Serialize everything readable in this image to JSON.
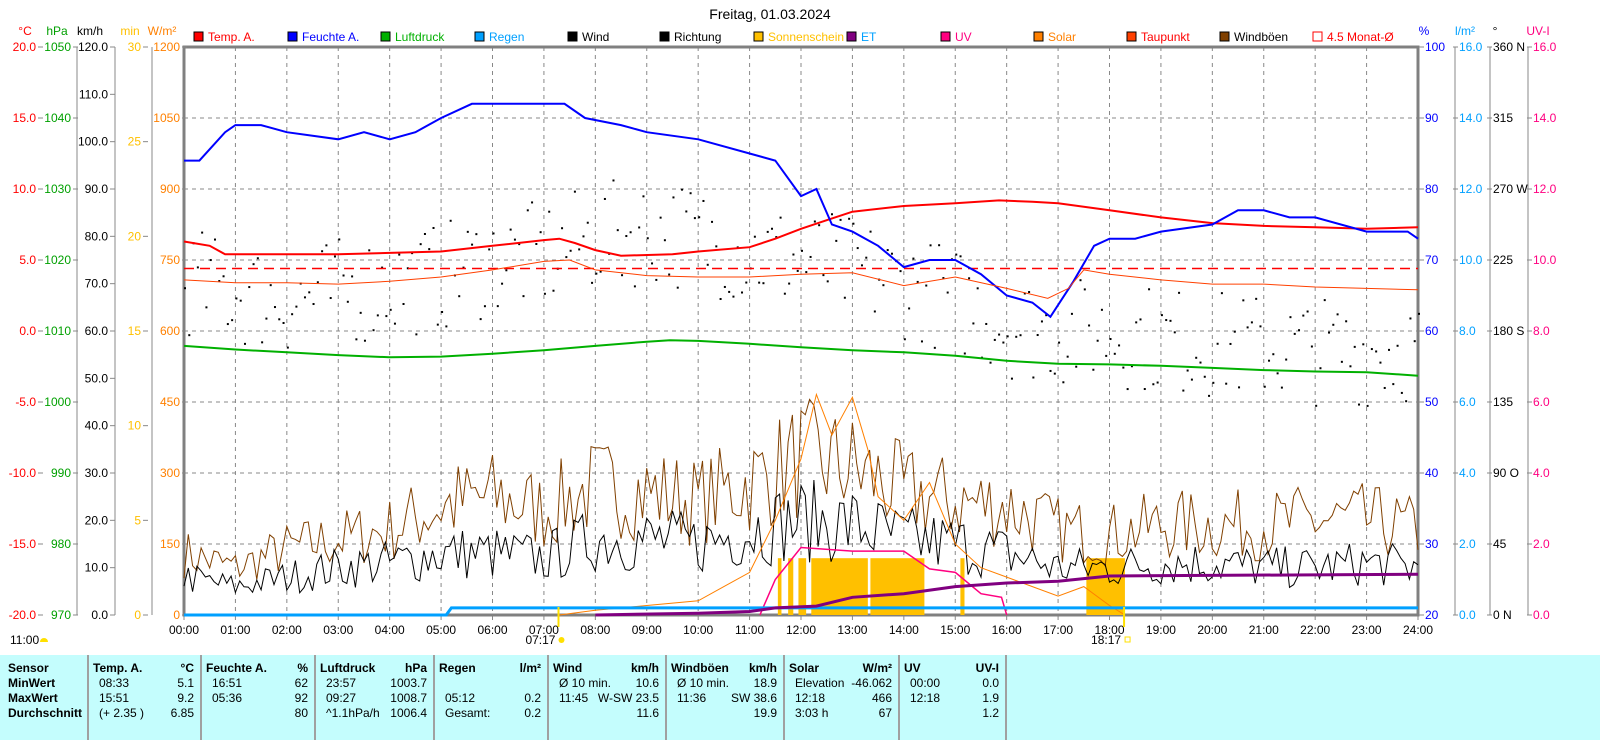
{
  "chart_data": {
    "type": "line",
    "title": "Freitag, 01.03.2024",
    "x_ticks": [
      "00:00",
      "01:00",
      "02:00",
      "03:00",
      "04:00",
      "05:00",
      "06:00",
      "07:00",
      "08:00",
      "09:00",
      "10:00",
      "11:00",
      "12:00",
      "13:00",
      "14:00",
      "15:00",
      "16:00",
      "17:00",
      "18:00",
      "19:00",
      "20:00",
      "21:00",
      "22:00",
      "23:00",
      "24:00"
    ],
    "xlim_hours": [
      0,
      24
    ],
    "grid": true,
    "legend_position": "top",
    "legend": [
      {
        "label": "Temp. A.",
        "color": "#ff0000",
        "text_color": "#ff0000"
      },
      {
        "label": "Feuchte A.",
        "color": "#0000ff",
        "text_color": "#0000ff"
      },
      {
        "label": "Luftdruck",
        "color": "#00b000",
        "text_color": "#00b000"
      },
      {
        "label": "Regen",
        "color": "#00a0ff",
        "text_color": "#00a0ff"
      },
      {
        "label": "Wind",
        "color": "#000000",
        "text_color": "#000000"
      },
      {
        "label": "Richtung",
        "color": "#000000",
        "text_color": "#000000"
      },
      {
        "label": "Sonnenschein",
        "color": "#ffc000",
        "text_color": "#ffc000"
      },
      {
        "label": "ET",
        "color": "#800080",
        "text_color": "#00a0ff"
      },
      {
        "label": "UV",
        "color": "#ff0080",
        "text_color": "#ff0080"
      },
      {
        "label": "Solar",
        "color": "#ff8000",
        "text_color": "#ff8000"
      },
      {
        "label": "Taupunkt",
        "color": "#ff4000",
        "text_color": "#ff0000"
      },
      {
        "label": "Windböen",
        "color": "#804000",
        "text_color": "#000000"
      },
      {
        "label": "4.5 Monat-Ø",
        "color": "#ff0000",
        "text_color": "#ff0000",
        "outline": true
      }
    ],
    "axes": {
      "temp": {
        "unit": "°C",
        "color": "#ff0000",
        "ticks": [
          "20.0",
          "15.0",
          "10.0",
          "5.0",
          "0.0",
          "-5.0",
          "-10.0",
          "-15.0",
          "-20.0"
        ]
      },
      "pressure": {
        "unit": "hPa",
        "color": "#00a000",
        "ticks": [
          "1050",
          "1040",
          "1030",
          "1020",
          "1010",
          "1000",
          "990",
          "980",
          "970"
        ]
      },
      "wind": {
        "unit": "km/h",
        "color": "#000000",
        "ticks": [
          "120.0",
          "110.0",
          "100.0",
          "90.0",
          "80.0",
          "70.0",
          "60.0",
          "50.0",
          "40.0",
          "30.0",
          "20.0",
          "10.0",
          "0.0"
        ]
      },
      "sunshine": {
        "unit": "min",
        "color": "#ffc000",
        "ticks": [
          "30",
          "25",
          "20",
          "15",
          "10",
          "5",
          "0"
        ]
      },
      "solar": {
        "unit": "W/m²",
        "color": "#ff8000",
        "ticks": [
          "1200",
          "1050",
          "900",
          "750",
          "600",
          "450",
          "300",
          "150",
          "0"
        ]
      },
      "humidity": {
        "unit": "%",
        "color": "#0000ff",
        "ticks": [
          "100",
          "90",
          "80",
          "70",
          "60",
          "50",
          "40",
          "30",
          "20"
        ]
      },
      "rain": {
        "unit": "l/m²",
        "color": "#00a0ff",
        "ticks": [
          "16.0",
          "14.0",
          "12.0",
          "10.0",
          "8.0",
          "6.0",
          "4.0",
          "2.0",
          "0.0"
        ]
      },
      "direction": {
        "unit": "°",
        "color": "#000000",
        "ticks": [
          "360 N",
          "315",
          "270 W",
          "225",
          "180 S",
          "135",
          "90 O",
          "45",
          "0 N"
        ]
      },
      "uv": {
        "unit": "UV-I",
        "color": "#ff0080",
        "ticks": [
          "16.0",
          "14.0",
          "12.0",
          "10.0",
          "8.0",
          "6.0",
          "4.0",
          "2.0",
          "0.0"
        ]
      }
    },
    "series": [
      {
        "name": "Temp. A.",
        "axis": "temp",
        "color": "#ff0000",
        "points": [
          [
            0,
            6.3
          ],
          [
            0.5,
            6.0
          ],
          [
            0.8,
            5.4
          ],
          [
            2,
            5.4
          ],
          [
            3,
            5.4
          ],
          [
            4,
            5.5
          ],
          [
            5,
            5.6
          ],
          [
            6,
            6.0
          ],
          [
            7,
            6.4
          ],
          [
            7.3,
            6.5
          ],
          [
            7.6,
            6.2
          ],
          [
            8,
            5.7
          ],
          [
            8.5,
            5.3
          ],
          [
            9.5,
            5.4
          ],
          [
            10,
            5.6
          ],
          [
            11,
            5.9
          ],
          [
            11.5,
            6.5
          ],
          [
            12,
            7.2
          ],
          [
            12.5,
            7.8
          ],
          [
            13,
            8.4
          ],
          [
            14,
            8.8
          ],
          [
            15,
            9.0
          ],
          [
            15.85,
            9.2
          ],
          [
            16.5,
            9.1
          ],
          [
            17,
            9.0
          ],
          [
            18,
            8.5
          ],
          [
            19,
            8.0
          ],
          [
            20,
            7.6
          ],
          [
            21,
            7.4
          ],
          [
            22,
            7.3
          ],
          [
            23,
            7.2
          ],
          [
            24,
            7.3
          ]
        ]
      },
      {
        "name": "Feuchte A.",
        "axis": "humidity",
        "color": "#0000ff",
        "points": [
          [
            0,
            84
          ],
          [
            0.3,
            84
          ],
          [
            0.8,
            88
          ],
          [
            1,
            89
          ],
          [
            1.5,
            89
          ],
          [
            2,
            88
          ],
          [
            3,
            87
          ],
          [
            3.5,
            88
          ],
          [
            4,
            87
          ],
          [
            4.5,
            88
          ],
          [
            5,
            90
          ],
          [
            5.6,
            92
          ],
          [
            7.4,
            92
          ],
          [
            7.8,
            90
          ],
          [
            8.5,
            89
          ],
          [
            9,
            88
          ],
          [
            10,
            87
          ],
          [
            11,
            85
          ],
          [
            11.5,
            84
          ],
          [
            12,
            79
          ],
          [
            12.3,
            80
          ],
          [
            12.6,
            75
          ],
          [
            13,
            74
          ],
          [
            13.5,
            72
          ],
          [
            14,
            69
          ],
          [
            14.5,
            70
          ],
          [
            15,
            70
          ],
          [
            15.5,
            68
          ],
          [
            16,
            65
          ],
          [
            16.5,
            64
          ],
          [
            16.85,
            62
          ],
          [
            17.3,
            67
          ],
          [
            17.7,
            72
          ],
          [
            18,
            73
          ],
          [
            18.5,
            73
          ],
          [
            19,
            74
          ],
          [
            20,
            75
          ],
          [
            20.5,
            77
          ],
          [
            21,
            77
          ],
          [
            21.5,
            76
          ],
          [
            22,
            76
          ],
          [
            23,
            74
          ],
          [
            23.8,
            74
          ],
          [
            24,
            73
          ]
        ]
      },
      {
        "name": "Luftdruck",
        "axis": "pressure",
        "color": "#00b000",
        "points": [
          [
            0,
            1007.9
          ],
          [
            1,
            1007.4
          ],
          [
            2,
            1007.0
          ],
          [
            3,
            1006.6
          ],
          [
            4,
            1006.3
          ],
          [
            5,
            1006.4
          ],
          [
            6,
            1006.8
          ],
          [
            7,
            1007.3
          ],
          [
            8,
            1007.9
          ],
          [
            9,
            1008.5
          ],
          [
            9.45,
            1008.7
          ],
          [
            10,
            1008.6
          ],
          [
            11,
            1008.2
          ],
          [
            12,
            1007.7
          ],
          [
            13,
            1007.3
          ],
          [
            14,
            1007.0
          ],
          [
            15,
            1006.5
          ],
          [
            16,
            1005.8
          ],
          [
            17,
            1005.4
          ],
          [
            18,
            1005.3
          ],
          [
            19,
            1005.1
          ],
          [
            20,
            1004.8
          ],
          [
            21,
            1004.5
          ],
          [
            22,
            1004.3
          ],
          [
            23,
            1004.2
          ],
          [
            24,
            1003.7
          ]
        ]
      },
      {
        "name": "Taupunkt",
        "axis": "temp",
        "color": "#ff4000",
        "points": [
          [
            0,
            3.6
          ],
          [
            1,
            3.4
          ],
          [
            2,
            3.4
          ],
          [
            3,
            3.3
          ],
          [
            4,
            3.5
          ],
          [
            5,
            3.8
          ],
          [
            6,
            4.3
          ],
          [
            7,
            4.9
          ],
          [
            7.5,
            5.0
          ],
          [
            8,
            4.3
          ],
          [
            9,
            3.9
          ],
          [
            10,
            3.8
          ],
          [
            11,
            3.8
          ],
          [
            12,
            4.0
          ],
          [
            13,
            4.1
          ],
          [
            14,
            3.2
          ],
          [
            15,
            3.8
          ],
          [
            16,
            3.0
          ],
          [
            16.8,
            2.3
          ],
          [
            17.2,
            3.0
          ],
          [
            17.5,
            4.3
          ],
          [
            18,
            4.0
          ],
          [
            19,
            3.6
          ],
          [
            20,
            3.3
          ],
          [
            21,
            3.3
          ],
          [
            22,
            3.1
          ],
          [
            23,
            3.0
          ],
          [
            24,
            2.9
          ]
        ]
      },
      {
        "name": "Solar",
        "axis": "solar",
        "color": "#ff8000",
        "points": [
          [
            7.3,
            0
          ],
          [
            8,
            10
          ],
          [
            9,
            20
          ],
          [
            10,
            30
          ],
          [
            10.5,
            60
          ],
          [
            11,
            90
          ],
          [
            11.5,
            200
          ],
          [
            12,
            330
          ],
          [
            12.3,
            466
          ],
          [
            12.6,
            380
          ],
          [
            13,
            460
          ],
          [
            13.3,
            350
          ],
          [
            13.5,
            250
          ],
          [
            14,
            200
          ],
          [
            14.5,
            280
          ],
          [
            15,
            150
          ],
          [
            15.5,
            100
          ],
          [
            16,
            80
          ],
          [
            16.5,
            60
          ],
          [
            17,
            40
          ],
          [
            17.5,
            60
          ],
          [
            18,
            20
          ],
          [
            18.3,
            0
          ]
        ]
      },
      {
        "name": "UV",
        "axis": "uv",
        "color": "#ff0080",
        "points": [
          [
            11.2,
            0
          ],
          [
            11.5,
            1.0
          ],
          [
            12,
            1.9
          ],
          [
            13,
            1.8
          ],
          [
            14,
            1.8
          ],
          [
            14.5,
            1.3
          ],
          [
            15,
            1.2
          ],
          [
            15.5,
            0.6
          ],
          [
            15.9,
            0.5
          ],
          [
            16,
            0
          ]
        ]
      },
      {
        "name": "Regen",
        "axis": "rain",
        "color": "#00a0ff",
        "points": [
          [
            0,
            0
          ],
          [
            5.1,
            0
          ],
          [
            5.2,
            0.2
          ],
          [
            24,
            0.2
          ]
        ]
      },
      {
        "name": "ET",
        "axis": "rain",
        "color": "#800080",
        "points": [
          [
            8,
            0
          ],
          [
            10,
            0.05
          ],
          [
            11,
            0.1
          ],
          [
            11.5,
            0.2
          ],
          [
            12.3,
            0.25
          ],
          [
            13,
            0.5
          ],
          [
            14,
            0.6
          ],
          [
            15,
            0.8
          ],
          [
            16,
            0.9
          ],
          [
            17,
            0.95
          ],
          [
            18,
            1.1
          ],
          [
            24,
            1.15
          ]
        ]
      }
    ],
    "wind_hourly_kmh": [
      8,
      6,
      8,
      10,
      11,
      13,
      13,
      12,
      16,
      16,
      15,
      18,
      20,
      19,
      16,
      15,
      13,
      10,
      10,
      11,
      11,
      10,
      10,
      11,
      10
    ],
    "gust_hourly_kmh": [
      13,
      10,
      14,
      16,
      18,
      23,
      25,
      22,
      27,
      26,
      24,
      28,
      33,
      31,
      26,
      24,
      23,
      18,
      17,
      19,
      19,
      19,
      20,
      20,
      18
    ],
    "direction_hourly_deg": [
      212,
      205,
      200,
      205,
      210,
      215,
      225,
      228,
      240,
      244,
      240,
      230,
      225,
      219,
      210,
      200,
      185,
      180,
      180,
      175,
      172,
      170,
      168,
      168,
      170
    ],
    "sunshine_intervals": [
      [
        11.55,
        11.62,
        3
      ],
      [
        11.75,
        11.85,
        3
      ],
      [
        11.95,
        12.1,
        3
      ],
      [
        12.2,
        13.3,
        3
      ],
      [
        13.35,
        14.4,
        3
      ],
      [
        15.1,
        15.18,
        3
      ],
      [
        17.55,
        18.3,
        3
      ]
    ],
    "monthly_avg_temp": 4.4,
    "moon_time": "11:00",
    "sunrise": "07:17",
    "sunset": "18:17"
  },
  "stats": {
    "sensor": [
      "Sensor",
      "MinWert",
      "MaxWert",
      "Durchschnitt"
    ],
    "groups": [
      {
        "title": "Temp. A.",
        "unit": "°C",
        "rows": [
          [
            "08:33",
            "5.1"
          ],
          [
            "15:51",
            "9.2"
          ],
          [
            "(+ 2.35 )",
            "6.85"
          ]
        ]
      },
      {
        "title": "Feuchte A.",
        "unit": "%",
        "rows": [
          [
            "16:51",
            "62"
          ],
          [
            "05:36",
            "92"
          ],
          [
            "",
            "80"
          ]
        ]
      },
      {
        "title": "Luftdruck",
        "unit": "hPa",
        "rows": [
          [
            "23:57",
            "1003.7"
          ],
          [
            "09:27",
            "1008.7"
          ],
          [
            "^1.1hPa/h",
            "1006.4"
          ]
        ]
      },
      {
        "title": "Regen",
        "unit": "l/m²",
        "rows": [
          [
            "",
            ""
          ],
          [
            "05:12",
            "0.2"
          ],
          [
            "Gesamt:",
            "0.2"
          ]
        ]
      },
      {
        "title": "Wind",
        "unit": "km/h",
        "rows": [
          [
            "Ø 10 min.",
            "10.6"
          ],
          [
            "11:45",
            "W-SW 23.5"
          ],
          [
            "",
            "11.6"
          ]
        ]
      },
      {
        "title": "Windböen",
        "unit": "km/h",
        "rows": [
          [
            "Ø 10 min.",
            "18.9"
          ],
          [
            "11:36",
            "SW 38.6"
          ],
          [
            "",
            "19.9"
          ]
        ]
      },
      {
        "title": "Solar",
        "unit": "W/m²",
        "rows": [
          [
            "Elevation",
            "-46.062"
          ],
          [
            "12:18",
            "466"
          ],
          [
            "3:03 h",
            "67"
          ]
        ]
      },
      {
        "title": "UV",
        "unit": "UV-I",
        "rows": [
          [
            "00:00",
            "0.0"
          ],
          [
            "12:18",
            "1.9"
          ],
          [
            "",
            "1.2"
          ]
        ]
      }
    ]
  }
}
